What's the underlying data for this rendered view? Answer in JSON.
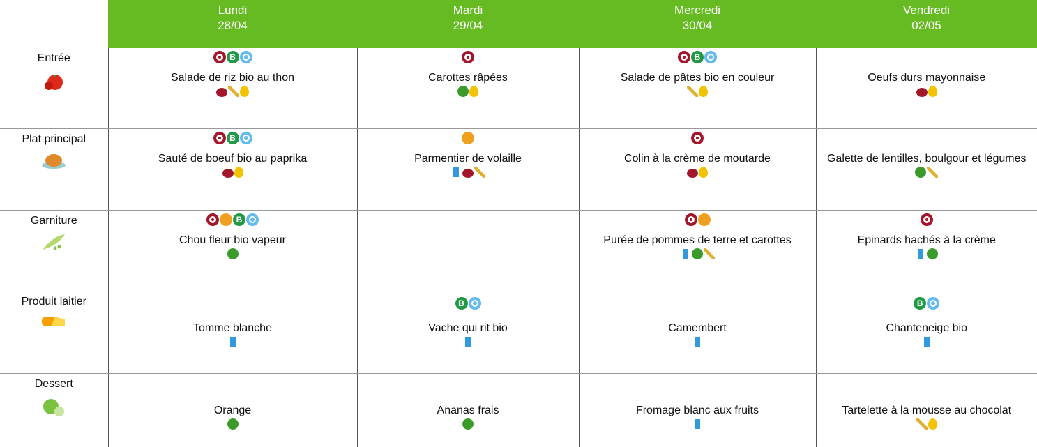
{
  "header": {
    "days": [
      {
        "day": "Lundi",
        "date": "28/04"
      },
      {
        "day": "Mardi",
        "date": "29/04"
      },
      {
        "day": "Mercredi",
        "date": "30/04"
      },
      {
        "day": "Vendredi",
        "date": "02/05"
      }
    ]
  },
  "rows": [
    {
      "category": "Entrée",
      "dishes": [
        "Salade de riz bio au thon",
        "Carottes râpées",
        "Salade de pâtes bio en couleur",
        "Oeufs durs mayonnaise"
      ]
    },
    {
      "category": "Plat principal",
      "dishes": [
        "Sauté de boeuf bio au paprika",
        "Parmentier de volaille",
        "Colin à la crème de moutarde",
        "Galette de lentilles, boulgour et légumes"
      ]
    },
    {
      "category": "Garniture",
      "dishes": [
        "Chou fleur bio vapeur",
        null,
        "Purée de pommes de terre et carottes",
        "Epinards hachés à la crème"
      ]
    },
    {
      "category": "Produit laitier",
      "dishes": [
        "Tomme blanche",
        "Vache qui rit bio",
        "Camembert",
        "Chanteneige bio"
      ]
    },
    {
      "category": "Dessert",
      "dishes": [
        "Orange",
        "Ananas frais",
        "Fromage blanc aux fruits",
        "Tartelette à la mousse au chocolat"
      ]
    }
  ]
}
